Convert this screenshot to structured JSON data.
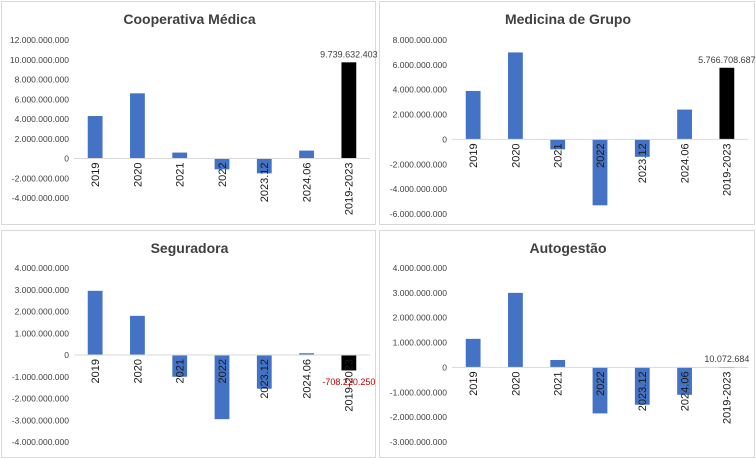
{
  "chart_data": [
    {
      "type": "bar",
      "title": "Cooperativa Médica",
      "categories": [
        "2019",
        "2020",
        "2021",
        "2022",
        "2023.12",
        "2024.06",
        "2019-2023"
      ],
      "values": [
        4300000000,
        6600000000,
        600000000,
        -1100000000,
        -1500000000,
        800000000,
        9739632403
      ],
      "colors": [
        "#4472c4",
        "#4472c4",
        "#4472c4",
        "#4472c4",
        "#4472c4",
        "#4472c4",
        "#000000"
      ],
      "ylim": [
        -4000000000,
        12000000000
      ],
      "yticks": [
        12000000000,
        10000000000,
        8000000000,
        6000000000,
        4000000000,
        2000000000,
        0,
        -2000000000,
        -4000000000
      ],
      "ytick_labels": [
        "12.000.000.000",
        "10.000.000.000",
        "8.000.000.000",
        "6.000.000.000",
        "4.000.000.000",
        "2.000.000.000",
        "0",
        "-2.000.000.000",
        "-4.000.000.000"
      ],
      "data_labels": [
        {
          "index": 6,
          "text": "9.739.632.403",
          "color": "#404040"
        }
      ],
      "xlabel": "",
      "ylabel": "",
      "grid": false,
      "legend": "none"
    },
    {
      "type": "bar",
      "title": "Medicina de Grupo",
      "categories": [
        "2019",
        "2020",
        "2021",
        "2022",
        "2023.12",
        "2024.06",
        "2019-2023"
      ],
      "values": [
        3900000000,
        7000000000,
        -800000000,
        -5300000000,
        -1400000000,
        2400000000,
        5766708687
      ],
      "colors": [
        "#4472c4",
        "#4472c4",
        "#4472c4",
        "#4472c4",
        "#4472c4",
        "#4472c4",
        "#000000"
      ],
      "ylim": [
        -6000000000,
        8000000000
      ],
      "yticks": [
        8000000000,
        6000000000,
        4000000000,
        2000000000,
        0,
        -2000000000,
        -4000000000,
        -6000000000
      ],
      "ytick_labels": [
        "8.000.000.000",
        "6.000.000.000",
        "4.000.000.000",
        "2.000.000.000",
        "0",
        "-2.000.000.000",
        "-4.000.000.000",
        "-6.000.000.000"
      ],
      "data_labels": [
        {
          "index": 6,
          "text": "5.766.708.687",
          "color": "#404040"
        }
      ],
      "xlabel": "",
      "ylabel": "",
      "grid": false,
      "legend": "none"
    },
    {
      "type": "bar",
      "title": "Seguradora",
      "categories": [
        "2019",
        "2020",
        "2021",
        "2022",
        "2023.12",
        "2024.06",
        "2019-2023"
      ],
      "values": [
        2950000000,
        1800000000,
        -1000000000,
        -2950000000,
        -1550000000,
        80000000,
        -708220250
      ],
      "colors": [
        "#4472c4",
        "#4472c4",
        "#4472c4",
        "#4472c4",
        "#4472c4",
        "#4472c4",
        "#000000"
      ],
      "ylim": [
        -4000000000,
        4000000000
      ],
      "yticks": [
        4000000000,
        3000000000,
        2000000000,
        1000000000,
        0,
        -1000000000,
        -2000000000,
        -3000000000,
        -4000000000
      ],
      "ytick_labels": [
        "4.000.000.000",
        "3.000.000.000",
        "2.000.000.000",
        "1.000.000.000",
        "0",
        "-1.000.000.000",
        "-2.000.000.000",
        "-3.000.000.000",
        "-4.000.000.000"
      ],
      "data_labels": [
        {
          "index": 6,
          "text": "-708.220.250",
          "color": "#c00000"
        }
      ],
      "xlabel": "",
      "ylabel": "",
      "grid": false,
      "legend": "none"
    },
    {
      "type": "bar",
      "title": "Autogestão",
      "categories": [
        "2019",
        "2020",
        "2021",
        "2022",
        "2023.12",
        "2024.06",
        "2019-2023"
      ],
      "values": [
        1150000000,
        3000000000,
        300000000,
        -1850000000,
        -1500000000,
        -1100000000,
        10072684
      ],
      "colors": [
        "#4472c4",
        "#4472c4",
        "#4472c4",
        "#4472c4",
        "#4472c4",
        "#4472c4",
        "#000000"
      ],
      "ylim": [
        -3000000000,
        4000000000
      ],
      "yticks": [
        4000000000,
        3000000000,
        2000000000,
        1000000000,
        0,
        -1000000000,
        -2000000000,
        -3000000000
      ],
      "ytick_labels": [
        "4.000.000.000",
        "3.000.000.000",
        "2.000.000.000",
        "1.000.000.000",
        "0",
        "-1.000.000.000",
        "-2.000.000.000",
        "-3.000.000.000"
      ],
      "data_labels": [
        {
          "index": 6,
          "text": "10.072.684",
          "color": "#404040"
        }
      ],
      "xlabel": "",
      "ylabel": "",
      "grid": false,
      "legend": "none"
    }
  ]
}
